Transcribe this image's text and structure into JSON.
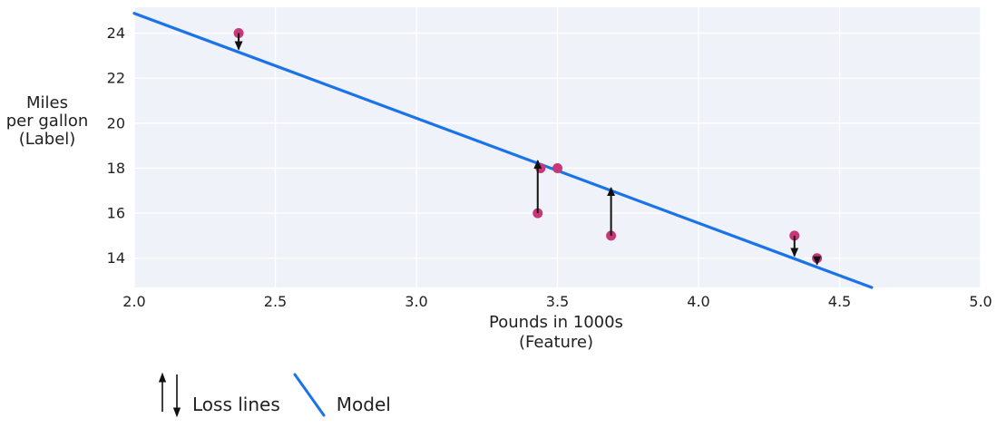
{
  "colors": {
    "model_line": "#1a73e8",
    "point_fill": "#c83778",
    "arrow": "#111111",
    "plot_background": "#eff2f8",
    "gridline": "#ffffff",
    "text": "#212121"
  },
  "chart_data": {
    "type": "scatter",
    "title": "",
    "xlabel_lines": [
      "Pounds in 1000s",
      "(Feature)"
    ],
    "ylabel_lines": [
      "Miles",
      "per gallon",
      "(Label)"
    ],
    "xlim": [
      2.0,
      5.0
    ],
    "ylim": [
      12.7,
      25.15
    ],
    "x_tick_values": [
      2.0,
      2.5,
      3.0,
      3.5,
      4.0,
      4.5,
      5.0
    ],
    "x_tick_labels": [
      "2.0",
      "2.5",
      "3.0",
      "3.5",
      "4.0",
      "4.5",
      "5.0"
    ],
    "y_tick_values": [
      14,
      16,
      18,
      20,
      22,
      24
    ],
    "y_tick_labels": [
      "14",
      "16",
      "18",
      "20",
      "22",
      "24"
    ],
    "grid": "on",
    "legend_position": "below-left",
    "points": [
      {
        "x": 3.5,
        "y": 18,
        "loss_arrow": false
      },
      {
        "x": 3.69,
        "y": 15,
        "loss_arrow": true
      },
      {
        "x": 3.44,
        "y": 18,
        "loss_arrow": false
      },
      {
        "x": 3.43,
        "y": 16,
        "loss_arrow": true
      },
      {
        "x": 4.34,
        "y": 15,
        "loss_arrow": true
      },
      {
        "x": 4.42,
        "y": 14,
        "loss_arrow": true
      },
      {
        "x": 2.37,
        "y": 24,
        "loss_arrow": true
      }
    ],
    "model_line": {
      "slope": -4.66,
      "intercept": 34.2
    },
    "legend": [
      {
        "symbol": "loss-arrows",
        "label": "Loss lines"
      },
      {
        "symbol": "model-line",
        "label": "Model"
      }
    ]
  }
}
